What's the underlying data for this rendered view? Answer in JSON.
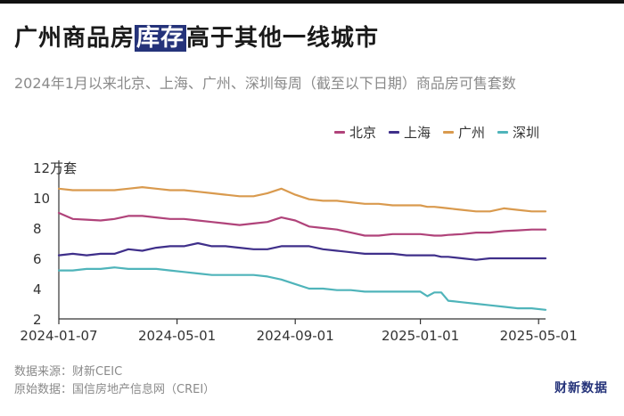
{
  "header": {
    "title_before": "广州商品房",
    "title_highlight": "库存",
    "title_after": "高于其他一线城市",
    "subtitle": "2024年1月以来北京、上海、广州、深圳每周（截至以下日期）商品房可售套数"
  },
  "footer": {
    "source": "数据来源：财新CEIC",
    "raw_source": "原始数据：国信房地产信息网（CREI）",
    "brand": "财新数据"
  },
  "colors": {
    "beijing": "#b0437a",
    "shanghai": "#3f2f8a",
    "guangzhou": "#d99a4e",
    "shenzhen": "#4fb4ba",
    "axis": "#333333"
  },
  "chart_data": {
    "type": "line",
    "title": "广州商品房库存高于其他一线城市",
    "subtitle": "2024年1月以来北京、上海、广州、深圳每周（截至以下日期）商品房可售套数",
    "ylabel": "12万套",
    "ylim": [
      2,
      12
    ],
    "yticks": [
      2,
      4,
      6,
      8,
      10,
      12
    ],
    "ytick_labels": [
      "2",
      "4",
      "6",
      "8",
      "10",
      "12万套"
    ],
    "xlim": [
      0,
      70
    ],
    "xticks": [
      0,
      17,
      34,
      52,
      69
    ],
    "xtick_labels": [
      "2024-01-07",
      "2024-05-01",
      "2024-09-01",
      "2025-01-01",
      "2025-05-01"
    ],
    "legend_position": "top-right",
    "x": [
      0,
      2,
      4,
      6,
      8,
      10,
      12,
      14,
      16,
      18,
      20,
      22,
      24,
      26,
      28,
      30,
      32,
      34,
      36,
      38,
      40,
      42,
      44,
      46,
      48,
      50,
      52,
      53,
      54,
      55,
      56,
      58,
      60,
      62,
      64,
      66,
      68,
      70
    ],
    "series": [
      {
        "name": "北京",
        "key": "beijing",
        "values": [
          9.0,
          8.6,
          8.55,
          8.5,
          8.6,
          8.8,
          8.8,
          8.7,
          8.6,
          8.6,
          8.5,
          8.4,
          8.3,
          8.2,
          8.3,
          8.4,
          8.7,
          8.5,
          8.1,
          8.0,
          7.9,
          7.7,
          7.5,
          7.5,
          7.6,
          7.6,
          7.6,
          7.55,
          7.5,
          7.5,
          7.55,
          7.6,
          7.7,
          7.7,
          7.8,
          7.85,
          7.9,
          7.9
        ]
      },
      {
        "name": "上海",
        "key": "shanghai",
        "values": [
          6.2,
          6.3,
          6.2,
          6.3,
          6.3,
          6.6,
          6.5,
          6.7,
          6.8,
          6.8,
          7.0,
          6.8,
          6.8,
          6.7,
          6.6,
          6.6,
          6.8,
          6.8,
          6.8,
          6.6,
          6.5,
          6.4,
          6.3,
          6.3,
          6.3,
          6.2,
          6.2,
          6.2,
          6.2,
          6.1,
          6.1,
          6.0,
          5.9,
          6.0,
          6.0,
          6.0,
          6.0,
          6.0
        ]
      },
      {
        "name": "广州",
        "key": "guangzhou",
        "values": [
          10.6,
          10.5,
          10.5,
          10.5,
          10.5,
          10.6,
          10.7,
          10.6,
          10.5,
          10.5,
          10.4,
          10.3,
          10.2,
          10.1,
          10.1,
          10.3,
          10.6,
          10.2,
          9.9,
          9.8,
          9.8,
          9.7,
          9.6,
          9.6,
          9.5,
          9.5,
          9.5,
          9.4,
          9.4,
          9.35,
          9.3,
          9.2,
          9.1,
          9.1,
          9.3,
          9.2,
          9.1,
          9.1
        ]
      },
      {
        "name": "深圳",
        "key": "shenzhen",
        "values": [
          5.2,
          5.2,
          5.3,
          5.3,
          5.4,
          5.3,
          5.3,
          5.3,
          5.2,
          5.1,
          5.0,
          4.9,
          4.9,
          4.9,
          4.9,
          4.8,
          4.6,
          4.3,
          4.0,
          4.0,
          3.9,
          3.9,
          3.8,
          3.8,
          3.8,
          3.8,
          3.8,
          3.5,
          3.75,
          3.75,
          3.2,
          3.1,
          3.0,
          2.9,
          2.8,
          2.7,
          2.7,
          2.6
        ]
      }
    ]
  }
}
